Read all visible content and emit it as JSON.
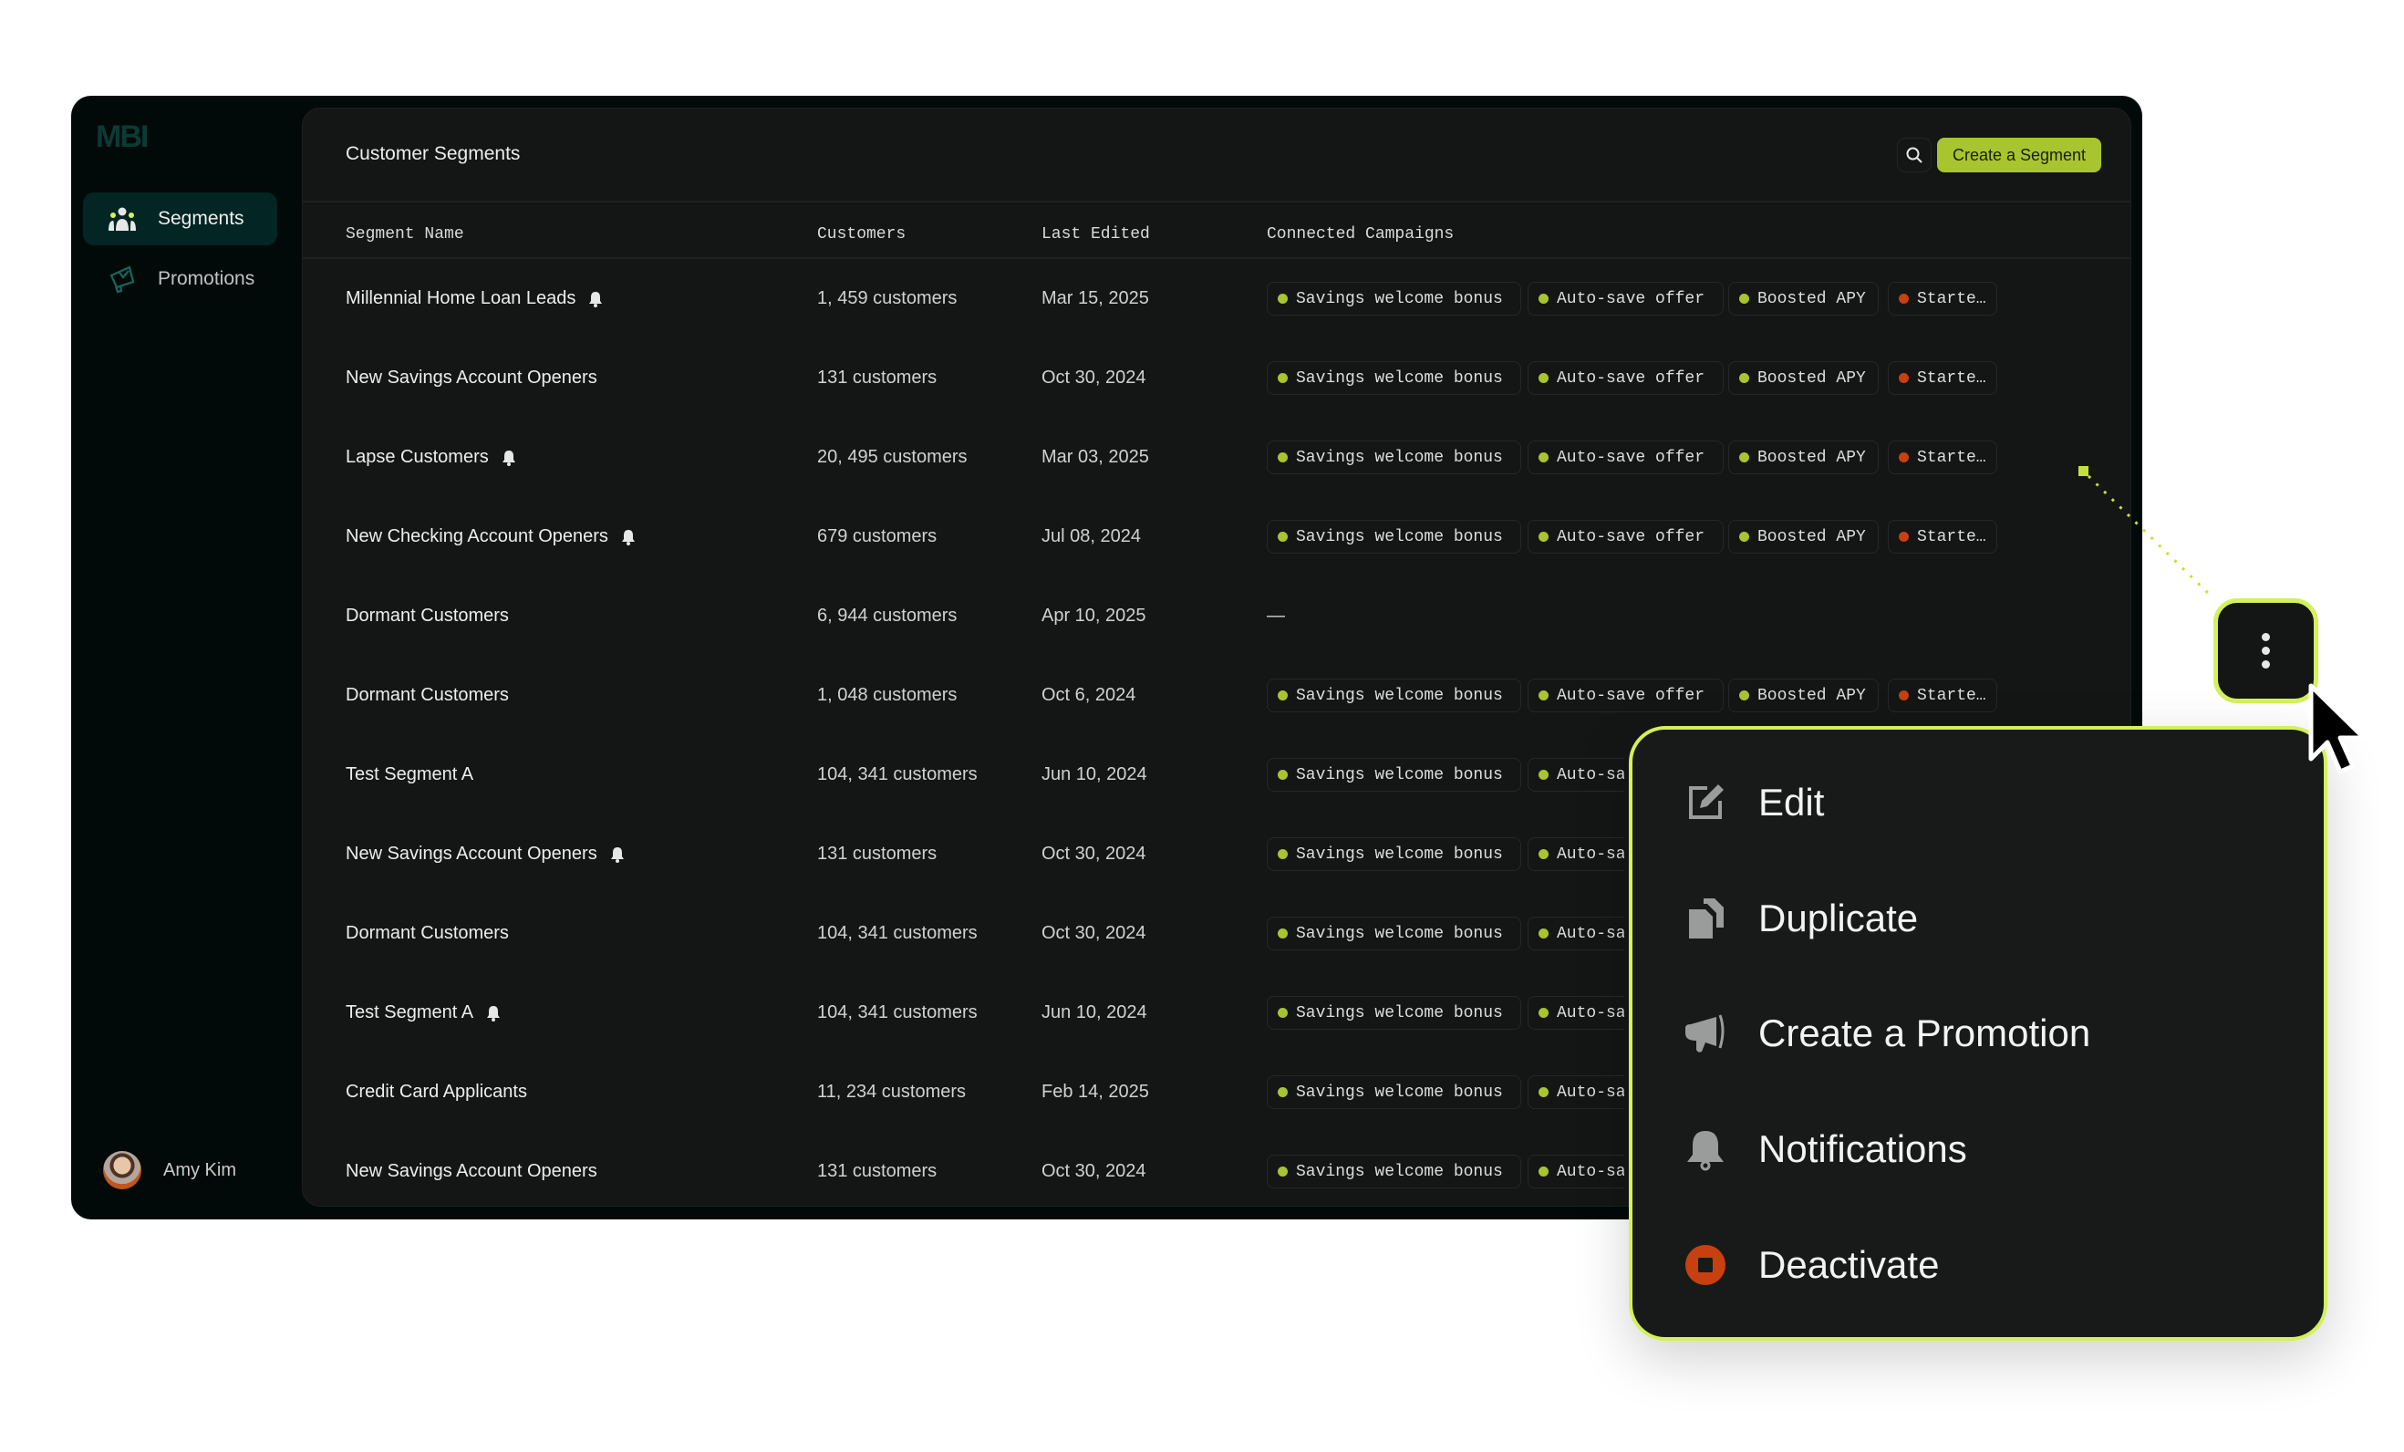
{
  "app": {
    "logo": "MBI"
  },
  "sidebar": {
    "items": [
      {
        "label": "Segments",
        "icon": "people-icon",
        "active": true
      },
      {
        "label": "Promotions",
        "icon": "megaphone-icon",
        "active": false
      }
    ],
    "user": {
      "name": "Amy Kim"
    }
  },
  "header": {
    "title": "Customer Segments",
    "create_label": "Create a Segment"
  },
  "table": {
    "columns": [
      "Segment Name",
      "Customers",
      "Last Edited",
      "Connected Campaigns"
    ],
    "rows": [
      {
        "name": "Millennial Home Loan Leads",
        "bell": true,
        "customers": "1, 459 customers",
        "edited": "Mar 15, 2025",
        "campaigns": true
      },
      {
        "name": "New Savings Account Openers",
        "bell": false,
        "customers": "131 customers",
        "edited": "Oct 30, 2024",
        "campaigns": true
      },
      {
        "name": "Lapse Customers",
        "bell": true,
        "customers": "20, 495 customers",
        "edited": "Mar 03, 2025",
        "campaigns": true
      },
      {
        "name": "New Checking Account Openers",
        "bell": true,
        "customers": "679 customers",
        "edited": "Jul 08, 2024",
        "campaigns": true
      },
      {
        "name": "Dormant Customers",
        "bell": false,
        "customers": "6, 944 customers",
        "edited": "Apr 10, 2025",
        "campaigns": false
      },
      {
        "name": "Dormant Customers",
        "bell": false,
        "customers": "1, 048 customers",
        "edited": "Oct 6, 2024",
        "campaigns": true
      },
      {
        "name": "Test Segment A",
        "bell": false,
        "customers": "104, 341 customers",
        "edited": "Jun 10, 2024",
        "campaigns": true
      },
      {
        "name": "New Savings Account Openers",
        "bell": true,
        "customers": "131 customers",
        "edited": "Oct 30, 2024",
        "campaigns": true
      },
      {
        "name": "Dormant Customers",
        "bell": false,
        "customers": "104, 341 customers",
        "edited": "Oct 30, 2024",
        "campaigns": true
      },
      {
        "name": "Test Segment A",
        "bell": true,
        "customers": "104, 341 customers",
        "edited": "Jun 10, 2024",
        "campaigns": true
      },
      {
        "name": "Credit Card Applicants",
        "bell": false,
        "customers": "11, 234 customers",
        "edited": "Feb 14, 2025",
        "campaigns": true
      },
      {
        "name": "New Savings Account Openers",
        "bell": false,
        "customers": "131 customers",
        "edited": "Oct 30, 2024",
        "campaigns": true
      }
    ],
    "campaign_chips": [
      {
        "label": "Savings welcome bonus",
        "status": "active"
      },
      {
        "label": "Auto-save offer",
        "status": "active"
      },
      {
        "label": "Boosted APY",
        "status": "active"
      },
      {
        "label": "Starte…",
        "status": "inactive"
      }
    ],
    "empty_campaigns": "—"
  },
  "context_menu": {
    "items": [
      {
        "label": "Edit",
        "icon": "edit-icon"
      },
      {
        "label": "Duplicate",
        "icon": "duplicate-icon"
      },
      {
        "label": "Create a Promotion",
        "icon": "megaphone-icon"
      },
      {
        "label": "Notifications",
        "icon": "bell-icon"
      },
      {
        "label": "Deactivate",
        "icon": "stop-icon"
      }
    ]
  },
  "colors": {
    "accent": "#a8c52f",
    "highlight": "#d4f05a",
    "active": "#a8c52f",
    "inactive": "#c8400f",
    "sidebar_active": "#032524"
  }
}
